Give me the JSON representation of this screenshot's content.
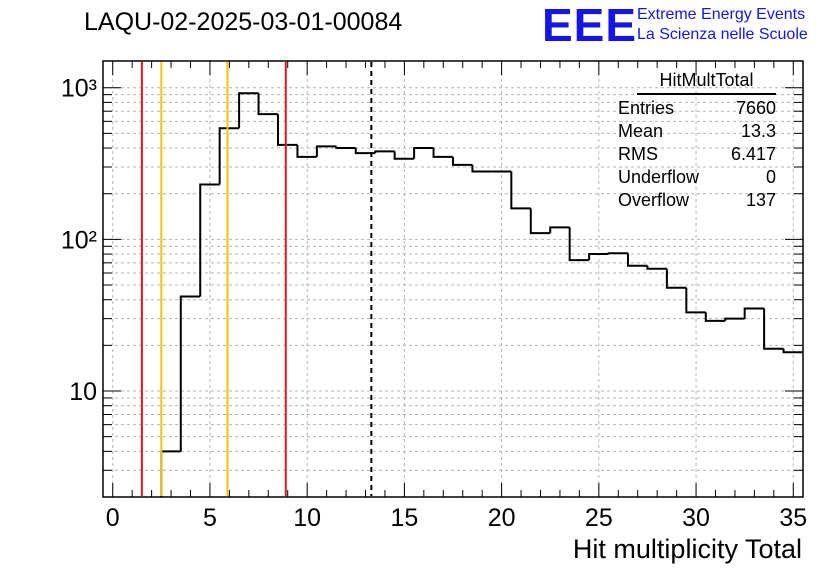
{
  "header": {
    "title": "LAQU-02-2025-03-01-00084"
  },
  "logo": {
    "mark": "EEE",
    "line1": "Extreme Energy Events",
    "line2": "La Scienza nelle Scuole",
    "color": "#1515e6"
  },
  "stats": {
    "title": "HitMultTotal",
    "rows": [
      {
        "label": "Entries",
        "value": "7660"
      },
      {
        "label": "Mean",
        "value": "13.3"
      },
      {
        "label": "RMS",
        "value": "6.417"
      },
      {
        "label": "Underflow",
        "value": "0"
      },
      {
        "label": "Overflow",
        "value": "137"
      }
    ]
  },
  "chart_data": {
    "type": "histogram",
    "title": "LAQU-02-2025-03-01-00084",
    "xlabel": "Hit multiplicity Total",
    "ylabel": "",
    "yscale": "log",
    "xlim": [
      -0.5,
      35.5
    ],
    "ylim": [
      2,
      1500
    ],
    "grid": true,
    "x_ticks": [
      0,
      5,
      10,
      15,
      20,
      25,
      30,
      35
    ],
    "y_ticks": [
      {
        "value": 10,
        "label": "10"
      },
      {
        "value": 100,
        "label": "10²"
      },
      {
        "value": 1000,
        "label": "10³"
      }
    ],
    "bin_edges": [
      2.5,
      3.5,
      4.5,
      5.5,
      6.5,
      7.5,
      8.5,
      9.5,
      10.5,
      11.5,
      12.5,
      13.5,
      14.5,
      15.5,
      16.5,
      17.5,
      18.5,
      19.5,
      20.5,
      21.5,
      22.5,
      23.5,
      24.5,
      25.5,
      26.5,
      27.5,
      28.5,
      29.5,
      30.5,
      31.5,
      32.5,
      33.5,
      34.5,
      35.5
    ],
    "counts": [
      4,
      42,
      230,
      540,
      920,
      670,
      420,
      350,
      410,
      400,
      370,
      380,
      340,
      400,
      350,
      310,
      280,
      280,
      160,
      110,
      120,
      73,
      80,
      81,
      67,
      64,
      48,
      33,
      29,
      30,
      35,
      19,
      18
    ],
    "vertical_lines": [
      {
        "x": 1.5,
        "color": "#e8141b",
        "style": "solid"
      },
      {
        "x": 2.5,
        "color": "#f5c400",
        "style": "solid"
      },
      {
        "x": 5.9,
        "color": "#f5c400",
        "style": "solid"
      },
      {
        "x": 8.9,
        "color": "#e8141b",
        "style": "solid"
      },
      {
        "x": 13.3,
        "color": "#000000",
        "style": "dashed"
      }
    ],
    "line_color": "#000000"
  }
}
